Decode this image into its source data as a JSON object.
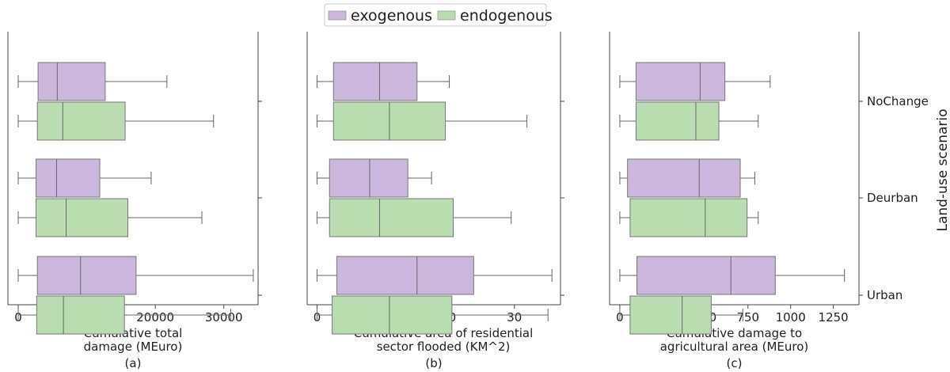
{
  "legend": [
    {
      "label": "exogenous",
      "color": "#cbb7dc"
    },
    {
      "label": "endogenous",
      "color": "#b9dcb1"
    }
  ],
  "y_axis_label": "Land-use scenario",
  "scenarios": [
    "NoChange",
    "Deurban",
    "Urban"
  ],
  "chart_data": [
    {
      "type": "boxplot",
      "orientation": "horizontal",
      "panel_label": "(a)",
      "xlabel": [
        "Cumulative total",
        "damage (MEuro)"
      ],
      "xlim": [
        -1500,
        35000
      ],
      "xticks": [
        0,
        10000,
        20000,
        30000
      ],
      "categories": [
        "NoChange",
        "Deurban",
        "Urban"
      ],
      "series": [
        {
          "name": "exogenous",
          "color": "#cbb7dc",
          "boxes": [
            {
              "min": 0,
              "q1": 2900,
              "median": 5700,
              "q3": 12700,
              "max": 21700
            },
            {
              "min": 0,
              "q1": 2600,
              "median": 5600,
              "q3": 11900,
              "max": 19400
            },
            {
              "min": 0,
              "q1": 2800,
              "median": 9100,
              "q3": 17200,
              "max": 34300
            }
          ]
        },
        {
          "name": "endogenous",
          "color": "#b9dcb1",
          "boxes": [
            {
              "min": 0,
              "q1": 2800,
              "median": 6500,
              "q3": 15600,
              "max": 28500
            },
            {
              "min": 0,
              "q1": 2600,
              "median": 7000,
              "q3": 16000,
              "max": 26800
            },
            {
              "min": 0,
              "q1": 2700,
              "median": 6600,
              "q3": 15500,
              "max": 31000
            }
          ]
        }
      ]
    },
    {
      "type": "boxplot",
      "orientation": "horizontal",
      "panel_label": "(b)",
      "xlabel": [
        "Cumulative area of residential",
        "sector flooded (KM^2)"
      ],
      "xlim": [
        -1.5,
        37
      ],
      "xticks": [
        0,
        10,
        20,
        30
      ],
      "categories": [
        "NoChange",
        "Deurban",
        "Urban"
      ],
      "series": [
        {
          "name": "exogenous",
          "color": "#cbb7dc",
          "boxes": [
            {
              "min": 0,
              "q1": 2.5,
              "median": 9.5,
              "q3": 15.2,
              "max": 20.1
            },
            {
              "min": 0,
              "q1": 1.9,
              "median": 8.0,
              "q3": 13.8,
              "max": 17.4
            },
            {
              "min": 0,
              "q1": 3.0,
              "median": 15.2,
              "q3": 23.8,
              "max": 35.7
            }
          ]
        },
        {
          "name": "endogenous",
          "color": "#b9dcb1",
          "boxes": [
            {
              "min": 0,
              "q1": 2.5,
              "median": 11.0,
              "q3": 19.5,
              "max": 31.9
            },
            {
              "min": 0,
              "q1": 1.9,
              "median": 9.5,
              "q3": 20.7,
              "max": 29.5
            },
            {
              "min": 0,
              "q1": 2.3,
              "median": 11.0,
              "q3": 20.5,
              "max": 35.1
            }
          ]
        }
      ]
    },
    {
      "type": "boxplot",
      "orientation": "horizontal",
      "panel_label": "(c)",
      "xlabel": [
        "Cumulative damage to",
        "agricultural area (MEuro)"
      ],
      "xlim": [
        -60,
        1400
      ],
      "xticks": [
        0,
        250,
        500,
        750,
        1000,
        1250
      ],
      "categories": [
        "NoChange",
        "Deurban",
        "Urban"
      ],
      "series": [
        {
          "name": "exogenous",
          "color": "#cbb7dc",
          "boxes": [
            {
              "min": 0,
              "q1": 95,
              "median": 470,
              "q3": 615,
              "max": 880
            },
            {
              "min": 0,
              "q1": 45,
              "median": 465,
              "q3": 705,
              "max": 790
            },
            {
              "min": 0,
              "q1": 100,
              "median": 650,
              "q3": 910,
              "max": 1315
            }
          ]
        },
        {
          "name": "endogenous",
          "color": "#b9dcb1",
          "boxes": [
            {
              "min": 0,
              "q1": 95,
              "median": 445,
              "q3": 580,
              "max": 810
            },
            {
              "min": 0,
              "q1": 60,
              "median": 500,
              "q3": 745,
              "max": 810
            },
            {
              "min": 0,
              "q1": 60,
              "median": 365,
              "q3": 535,
              "max": 720
            }
          ]
        }
      ]
    }
  ]
}
